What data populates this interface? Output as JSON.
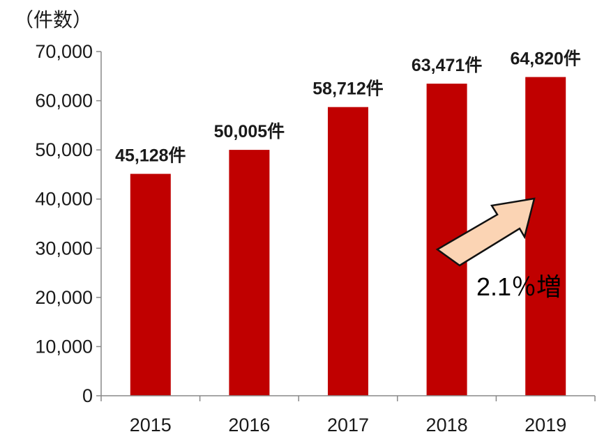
{
  "chart_data": {
    "type": "bar",
    "categories": [
      "2015",
      "2016",
      "2017",
      "2018",
      "2019"
    ],
    "values": [
      45128,
      50005,
      58712,
      63471,
      64820
    ],
    "data_labels": [
      "45,128件",
      "50,005件",
      "58,712件",
      "63,471件",
      "64,820件"
    ],
    "ylabel": "（件数）",
    "ylim": [
      0,
      70000
    ],
    "yticks": [
      0,
      10000,
      20000,
      30000,
      40000,
      50000,
      60000,
      70000
    ],
    "ytick_labels": [
      "0",
      "10,000",
      "20,000",
      "30,000",
      "40,000",
      "50,000",
      "60,000",
      "70,000"
    ],
    "grid": false,
    "annotation": "2.1％増",
    "colors": {
      "bar": "#c00000",
      "arrow_fill": "#fbd4b4",
      "arrow_stroke": "#111111",
      "axis": "#888888"
    }
  }
}
